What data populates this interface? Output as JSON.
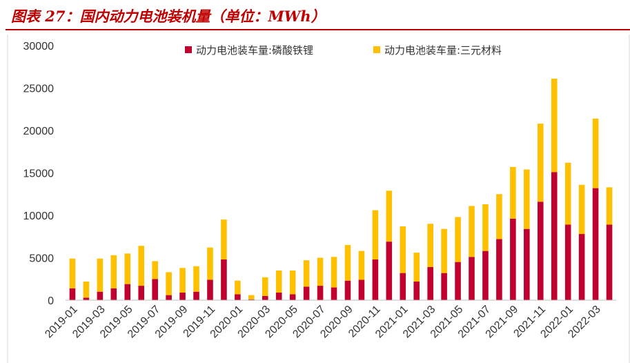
{
  "page": {
    "title": "图表 27：国内动力电池装机量（单位：MWh）"
  },
  "colors": {
    "lfp": "#c0002e",
    "ncm": "#ffc000",
    "title": "#c00000"
  },
  "chart_data": {
    "type": "bar",
    "stacked": true,
    "title": "图表 27：国内动力电池装机量（单位：MWh）",
    "xlabel": "",
    "ylabel": "",
    "ylim": [
      0,
      30000
    ],
    "yticks": [
      "30000",
      "25000",
      "20000",
      "15000",
      "10000",
      "5000",
      "0"
    ],
    "legend_position": "top",
    "grid": false,
    "categories": [
      "2019-01",
      "2019-02",
      "2019-03",
      "2019-04",
      "2019-05",
      "2019-06",
      "2019-07",
      "2019-08",
      "2019-09",
      "2019-10",
      "2019-11",
      "2019-12",
      "2020-01",
      "2020-02",
      "2020-03",
      "2020-04",
      "2020-05",
      "2020-06",
      "2020-07",
      "2020-08",
      "2020-09",
      "2020-10",
      "2020-11",
      "2020-12",
      "2021-01",
      "2021-02",
      "2021-03",
      "2021-04",
      "2021-05",
      "2021-06",
      "2021-07",
      "2021-08",
      "2021-09",
      "2021-10",
      "2021-11",
      "2021-12",
      "2022-01",
      "2022-02",
      "2022-03",
      "2022-04"
    ],
    "xtick_labels": [
      "2019-01",
      "2019-03",
      "2019-05",
      "2019-07",
      "2019-09",
      "2019-11",
      "2020-01",
      "2020-03",
      "2020-05",
      "2020-07",
      "2020-09",
      "2020-11",
      "2021-01",
      "2021-03",
      "2021-05",
      "2021-07",
      "2021-09",
      "2021-11",
      "2022-01",
      "2022-03"
    ],
    "series": [
      {
        "name": "动力电池装车量:磷酸铁锂",
        "color": "#c0002e",
        "values": [
          1400,
          300,
          1000,
          1400,
          1900,
          1700,
          2500,
          600,
          900,
          1000,
          2400,
          4800,
          700,
          100,
          500,
          900,
          700,
          1600,
          1700,
          1500,
          2300,
          2400,
          4800,
          6900,
          3200,
          2200,
          3900,
          3200,
          4500,
          5100,
          5800,
          7200,
          9600,
          8400,
          11600,
          15100,
          8900,
          7800,
          13200,
          8900
        ]
      },
      {
        "name": "动力电池装车量:三元材料",
        "color": "#ffc000",
        "values": [
          3500,
          1900,
          3900,
          3900,
          3600,
          4700,
          2100,
          2700,
          2900,
          3000,
          3800,
          4700,
          1600,
          500,
          2200,
          2600,
          2800,
          3100,
          3300,
          3600,
          4200,
          3400,
          5800,
          6000,
          5500,
          3400,
          5100,
          5200,
          5300,
          6000,
          5500,
          5300,
          6100,
          7000,
          9200,
          11000,
          7300,
          5800,
          8200,
          4400
        ]
      }
    ]
  }
}
